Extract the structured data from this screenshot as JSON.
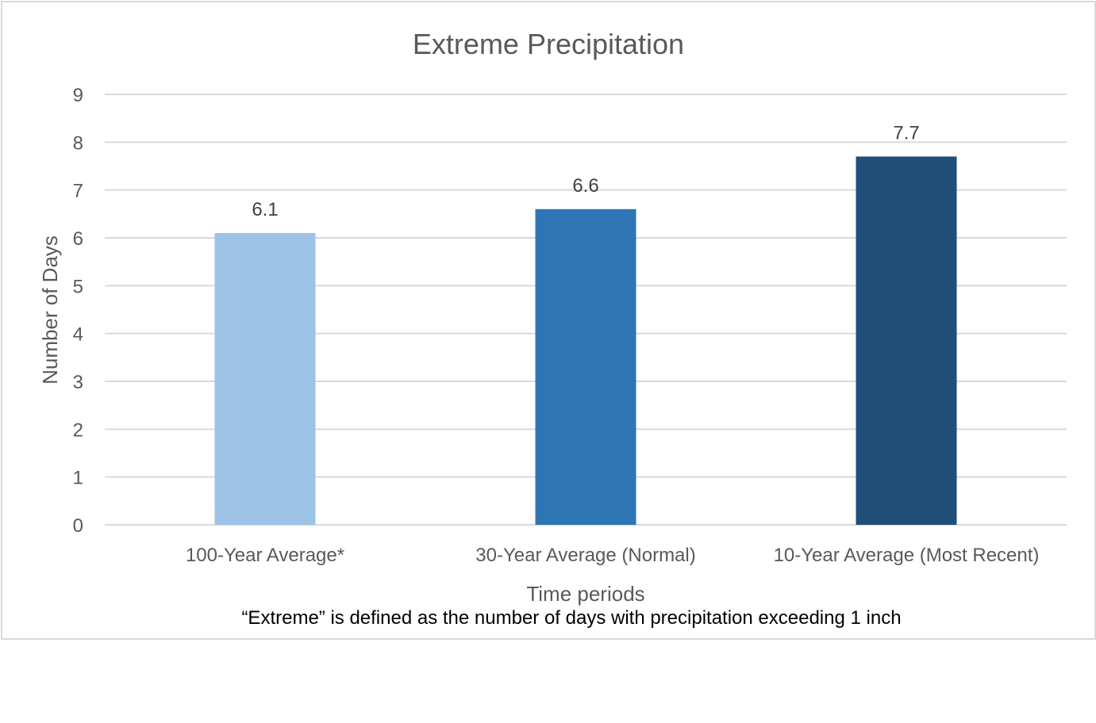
{
  "chart_data": {
    "type": "bar",
    "title": "Extreme Precipitation",
    "xlabel": "Time periods",
    "ylabel": "Number of Days",
    "note": "“Extreme” is defined as the number of days with precipitation exceeding 1 inch",
    "categories": [
      "100-Year Average*",
      "30-Year Average (Normal)",
      "10-Year Average (Most Recent)"
    ],
    "values": [
      6.1,
      6.6,
      7.7
    ],
    "data_labels": [
      "6.1",
      "6.6",
      "7.7"
    ],
    "colors": [
      "#9dc3e6",
      "#2e75b6",
      "#1f4e79"
    ],
    "ylim": [
      0,
      9
    ],
    "yticks": [
      "0",
      "1",
      "2",
      "3",
      "4",
      "5",
      "6",
      "7",
      "8",
      "9"
    ],
    "grid": true,
    "legend": "none"
  }
}
